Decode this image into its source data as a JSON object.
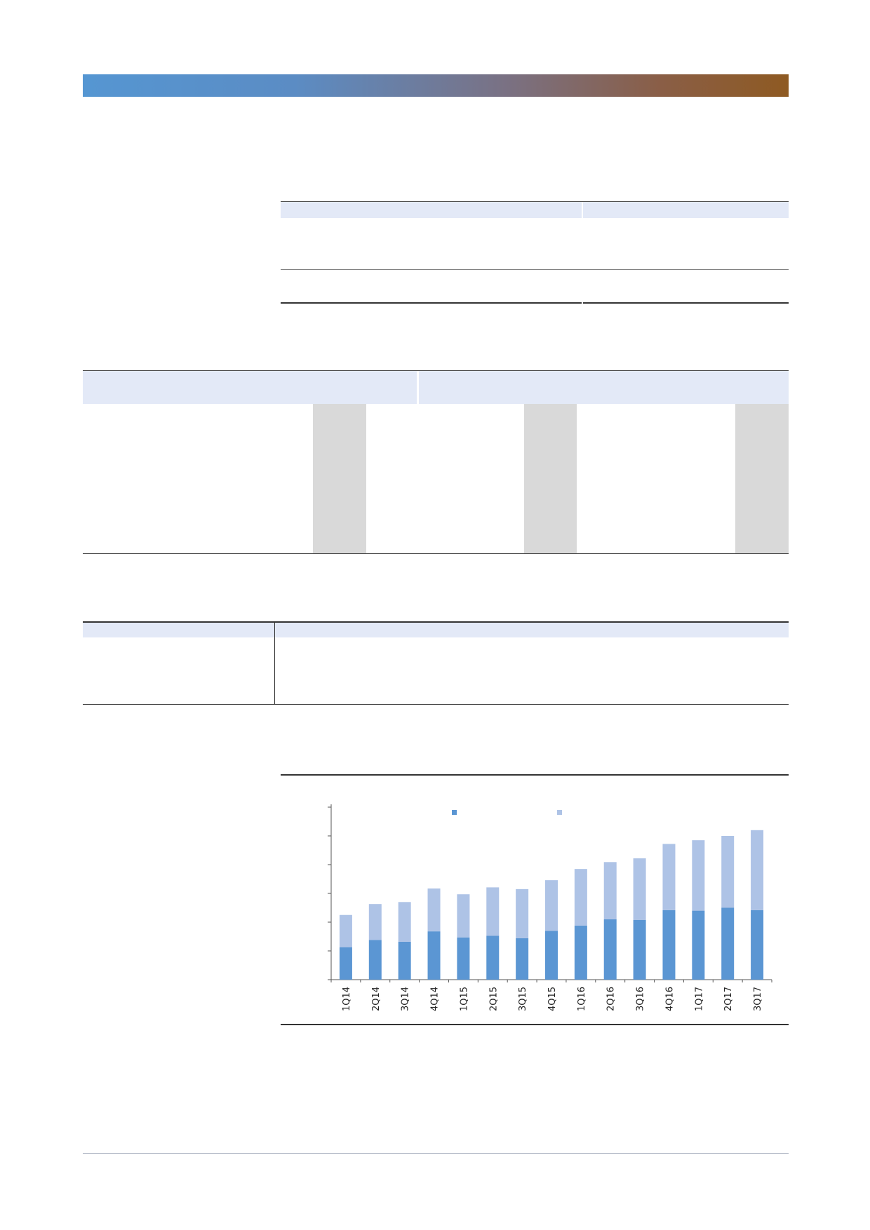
{
  "chart_data": {
    "type": "bar",
    "stacked": true,
    "categories": [
      "1Q14",
      "2Q14",
      "3Q14",
      "4Q14",
      "1Q15",
      "2Q15",
      "3Q15",
      "4Q15",
      "1Q16",
      "2Q16",
      "3Q16",
      "4Q16",
      "1Q17",
      "2Q17",
      "3Q17"
    ],
    "series": [
      {
        "values": [
          1.13,
          1.38,
          1.32,
          1.68,
          1.47,
          1.53,
          1.44,
          1.7,
          1.88,
          2.1,
          2.08,
          2.42,
          2.4,
          2.5,
          2.42
        ],
        "color": "#5b96d3"
      },
      {
        "values": [
          1.12,
          1.25,
          1.38,
          1.49,
          1.5,
          1.68,
          1.71,
          1.76,
          1.97,
          1.99,
          2.14,
          2.3,
          2.45,
          2.5,
          2.78
        ],
        "color": "#aec3e6"
      }
    ],
    "ylim": [
      0,
      6
    ],
    "legend": "top",
    "grid": false
  }
}
